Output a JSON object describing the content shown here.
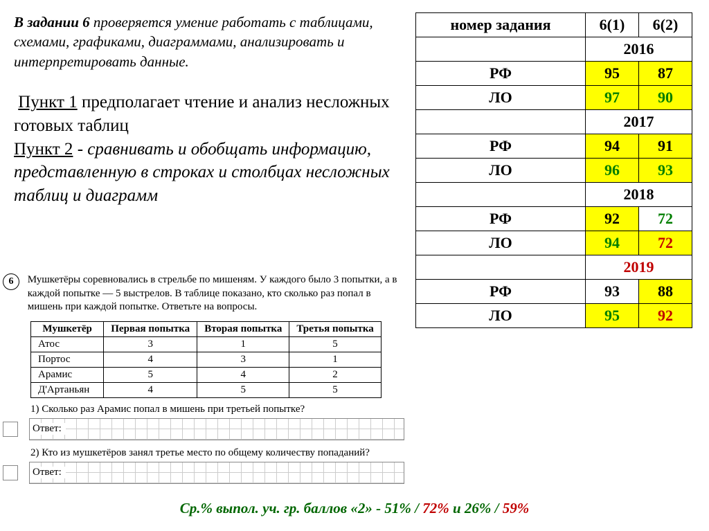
{
  "intro": {
    "bold": "В задании 6",
    "rest": " проверяется умение работать с таблицами, схемами, графиками, диаграммами, анализировать и интерпретировать данные."
  },
  "points": {
    "p1_label": "Пункт 1",
    "p1_rest": " предполагает чтение и анализ несложных готовых таблиц",
    "p2_label": "Пункт 2",
    "p2_rest": " - сравнивать и обобщать информацию, представленную в строках и столбцах несложных таблиц и диаграмм"
  },
  "score_table": {
    "head": {
      "c1": "номер задания",
      "c2": "6(1)",
      "c3": "6(2)"
    },
    "years": [
      {
        "year": "2016",
        "rows": [
          {
            "label": "РФ",
            "v1": "95",
            "v2": "87",
            "c1": "y",
            "c2": "y",
            "t1": "",
            "t2": ""
          },
          {
            "label": "ЛО",
            "v1": "97",
            "v2": "90",
            "c1": "y",
            "c2": "y",
            "t1": "grn",
            "t2": "grn"
          }
        ]
      },
      {
        "year": "2017",
        "rows": [
          {
            "label": "РФ",
            "v1": "94",
            "v2": "91",
            "c1": "y",
            "c2": "y",
            "t1": "",
            "t2": ""
          },
          {
            "label": "ЛО",
            "v1": "96",
            "v2": "93",
            "c1": "y",
            "c2": "y",
            "t1": "grn",
            "t2": "grn"
          }
        ]
      },
      {
        "year": "2018",
        "rows": [
          {
            "label": "РФ",
            "v1": "92",
            "v2": "72",
            "c1": "y",
            "c2": "",
            "t1": "",
            "t2": "grn"
          },
          {
            "label": "ЛО",
            "v1": "94",
            "v2": "72",
            "c1": "y",
            "c2": "y",
            "t1": "grn",
            "t2": "red"
          }
        ]
      },
      {
        "year": "2019",
        "year_class": "red",
        "rows": [
          {
            "label": "РФ",
            "v1": "93",
            "v2": "88",
            "c1": "",
            "c2": "y",
            "t1": "",
            "t2": ""
          },
          {
            "label": "ЛО",
            "v1": "95",
            "v2": "92",
            "c1": "y",
            "c2": "y",
            "t1": "grn",
            "t2": "red"
          }
        ]
      }
    ]
  },
  "problem": {
    "num": "6",
    "text": "Мушкетёры соревновались в стрельбе по мишеням. У каждого было 3 попытки, а в каждой попытке — 5 выстрелов. В таблице показано, кто сколько раз попал в мишень при каждой попытке. Ответьте на вопросы.",
    "columns": [
      "Мушкетёр",
      "Первая попытка",
      "Вторая попытка",
      "Третья попытка"
    ],
    "rows": [
      [
        "Атос",
        "3",
        "1",
        "5"
      ],
      [
        "Портос",
        "4",
        "3",
        "1"
      ],
      [
        "Арамис",
        "5",
        "4",
        "2"
      ],
      [
        "Д'Артаньян",
        "4",
        "5",
        "5"
      ]
    ],
    "q1": "1) Сколько раз Арамис попал в мишень при третьей попытке?",
    "q2": "2) Кто из мушкетёров занял третье место по общему количеству попаданий?",
    "answer_label": "Ответ:"
  },
  "footer": {
    "lead": "Ср.% выпол. уч. гр. баллов «2» -  ",
    "v1": "51%",
    "sep1": " /",
    "v2": "72%",
    "mid": " и ",
    "v3": "26%",
    "sep2": "/",
    "v4": "59%"
  }
}
